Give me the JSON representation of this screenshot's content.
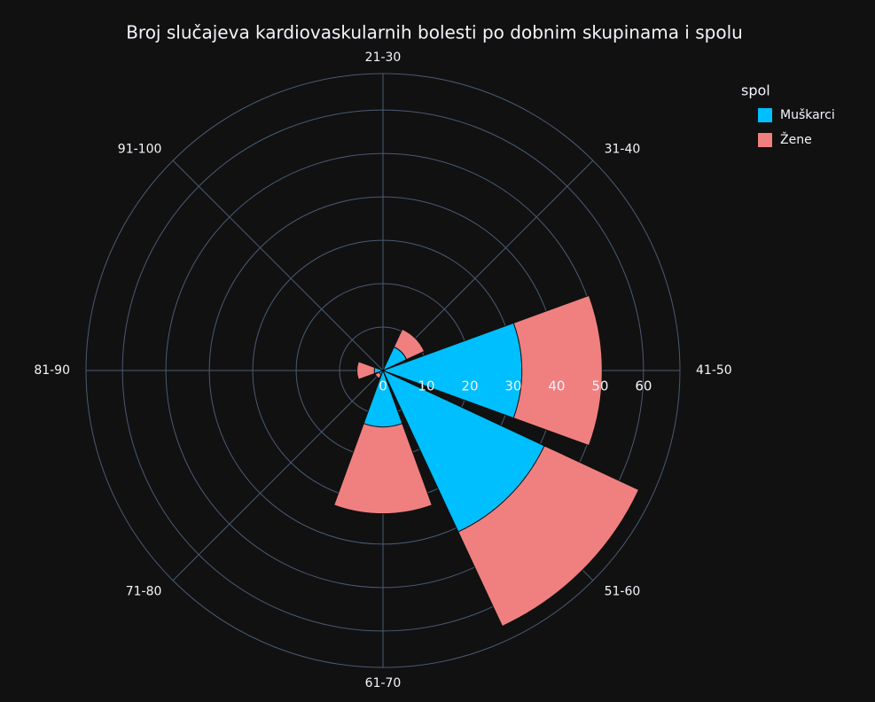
{
  "chart_data": {
    "type": "barpolar",
    "title": "Broj slučajeva kardiovaskularnih bolesti po dobnim skupinama i spolu",
    "categories": [
      "21-30",
      "31-40",
      "41-50",
      "51-60",
      "61-70",
      "71-80",
      "81-90",
      "91-100"
    ],
    "series": [
      {
        "name": "Muškarci",
        "color": "#00bfff",
        "values": [
          0,
          6,
          32,
          41,
          13,
          1,
          2,
          0
        ]
      },
      {
        "name": "Žene",
        "color": "#f08080",
        "values": [
          0,
          4.5,
          18.5,
          24,
          20,
          1,
          4,
          0
        ]
      }
    ],
    "legend_title": "spol",
    "legend_position": "top-right",
    "ylim": [
      0,
      68.4
    ],
    "yticks": [
      0,
      10,
      20,
      30,
      40,
      50,
      60
    ],
    "grid": true
  }
}
